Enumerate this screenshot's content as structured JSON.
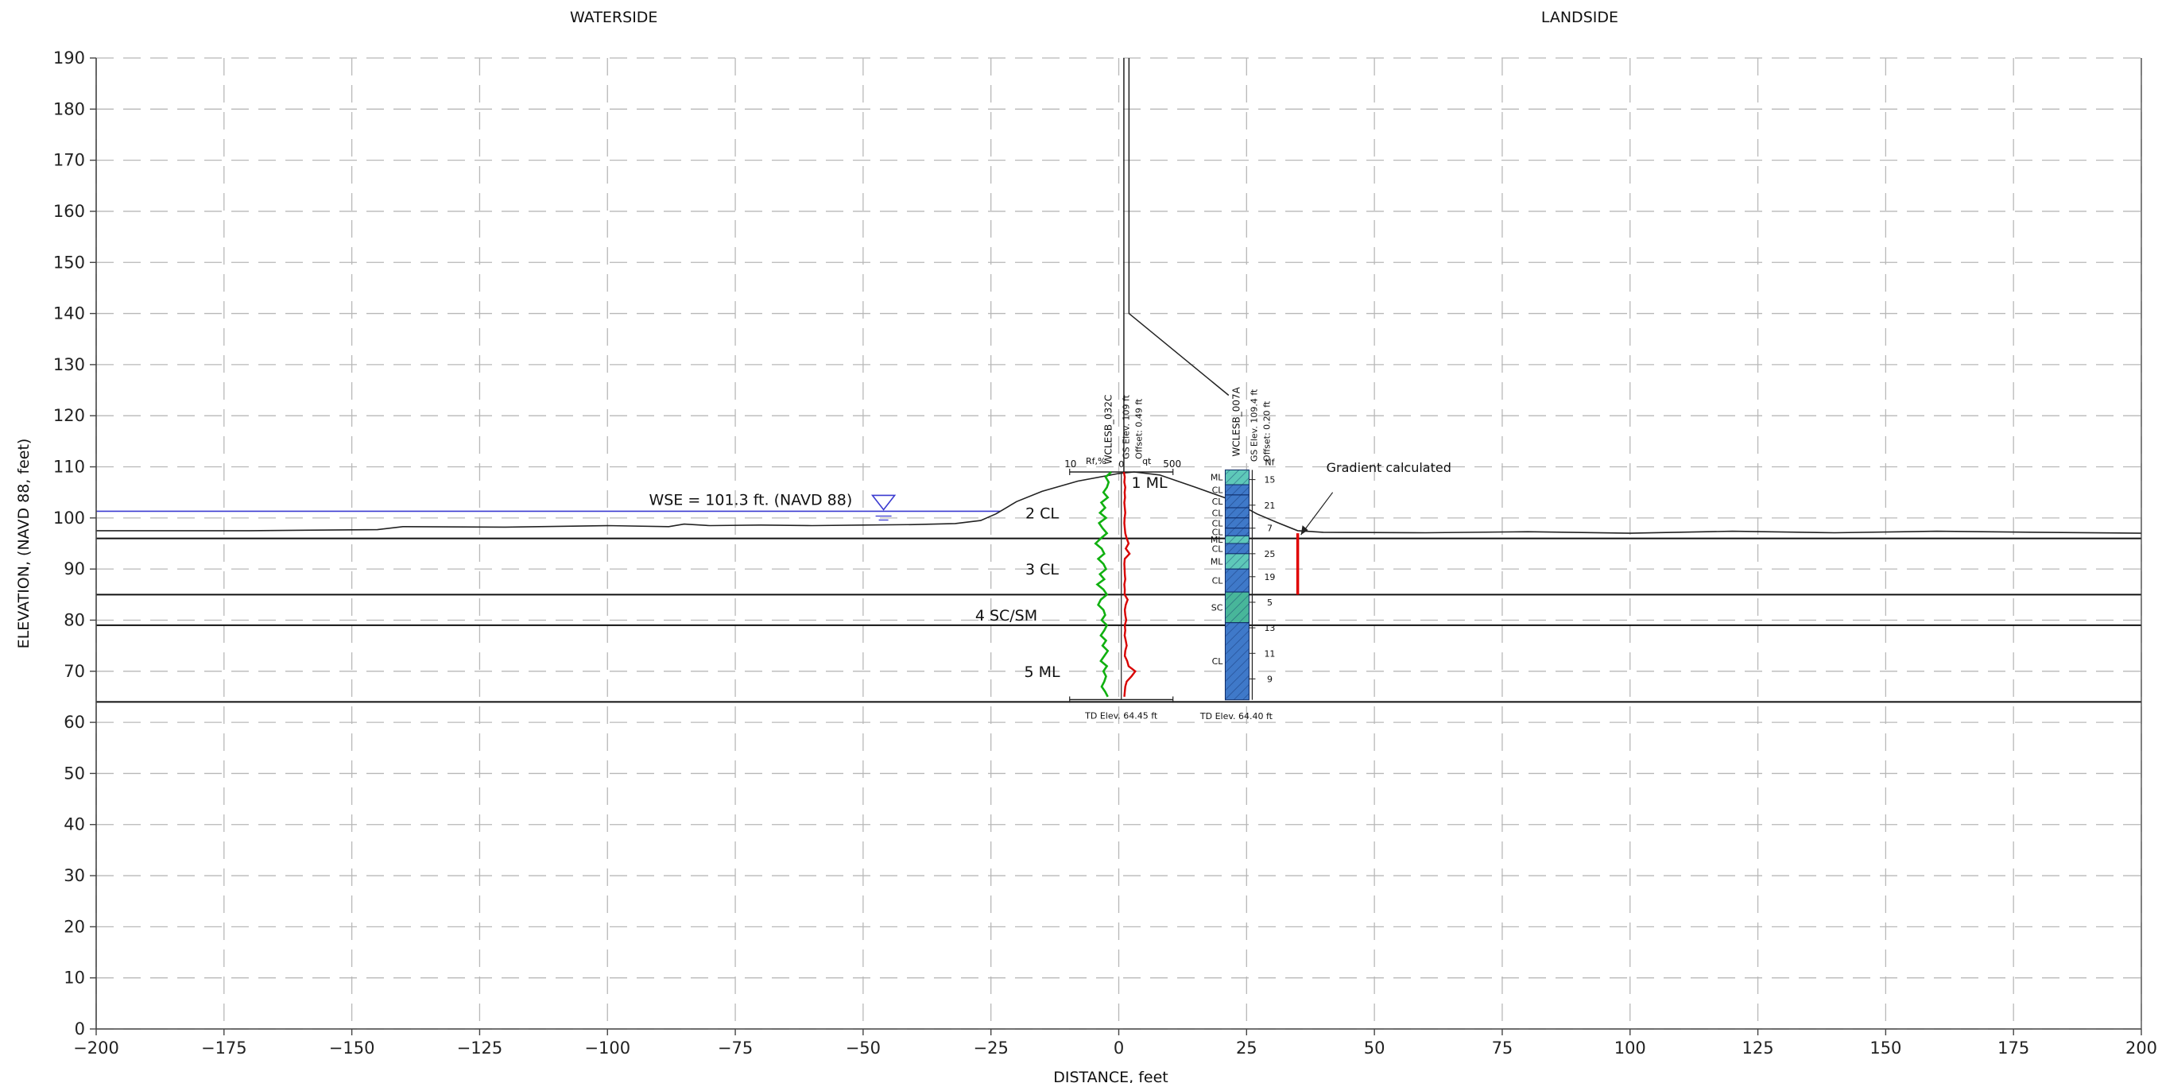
{
  "chart_data": {
    "type": "cross-section",
    "region_labels": {
      "left": "WATERSIDE",
      "right": "LANDSIDE"
    },
    "xlabel": "DISTANCE, feet",
    "ylabel": "ELEVATION, (NAVD 88, feet)",
    "xlim": [
      -200,
      200
    ],
    "ylim": [
      0,
      190
    ],
    "xticks": [
      -200,
      -175,
      -150,
      -125,
      -100,
      -75,
      -50,
      -25,
      0,
      25,
      50,
      75,
      100,
      125,
      150,
      175,
      200
    ],
    "yticks": [
      0,
      10,
      20,
      30,
      40,
      50,
      60,
      70,
      80,
      90,
      100,
      110,
      120,
      130,
      140,
      150,
      160,
      170,
      180,
      190
    ],
    "xtick_labels": [
      "−200",
      "−175",
      "−150",
      "−125",
      "−100",
      "−75",
      "−50",
      "−25",
      "0",
      "25",
      "50",
      "75",
      "100",
      "125",
      "150",
      "175",
      "200"
    ],
    "ytick_labels": [
      "0",
      "10",
      "20",
      "30",
      "40",
      "50",
      "60",
      "70",
      "80",
      "90",
      "100",
      "110",
      "120",
      "130",
      "140",
      "150",
      "160",
      "170",
      "180",
      "190"
    ],
    "grid": true,
    "water_surface": {
      "label": "WSE = 101.3 ft. (NAVD 88)",
      "elevation": 101.3,
      "symbol_x": -46,
      "color": "#3a3ad0"
    },
    "ground_surface": {
      "x": [
        -200,
        -170,
        -145,
        -140,
        -120,
        -100,
        -88,
        -85,
        -80,
        -70,
        -60,
        -50,
        -40,
        -32,
        -27,
        -24,
        -20,
        -15,
        -8,
        0,
        3,
        8,
        15,
        22,
        27,
        31,
        35,
        40,
        60,
        80,
        100,
        120,
        140,
        160,
        180,
        200
      ],
      "y": [
        97.5,
        97.5,
        97.7,
        98.3,
        98.2,
        98.5,
        98.3,
        98.8,
        98.5,
        98.6,
        98.5,
        98.6,
        98.7,
        98.9,
        99.5,
        100.8,
        103.2,
        105.2,
        107.2,
        108.7,
        109.0,
        108.4,
        106.0,
        103.5,
        100.8,
        99.1,
        97.5,
        97.2,
        97.1,
        97.3,
        97.0,
        97.4,
        97.1,
        97.4,
        97.2,
        97.0
      ]
    },
    "layer_boundaries": [
      96.0,
      85.0,
      79.0,
      64.0
    ],
    "layer_labels": [
      {
        "text": "1 ML",
        "x": 6,
        "y": 107.0
      },
      {
        "text": "2 CL",
        "x": -15,
        "y": 101.0
      },
      {
        "text": "3 CL",
        "x": -15,
        "y": 90.0
      },
      {
        "text": "4 SC/SM",
        "x": -22,
        "y": 81.0
      },
      {
        "text": "5 ML",
        "x": -15,
        "y": 70.0
      }
    ],
    "borings": [
      {
        "name": "WCLESB_032C",
        "gs_elev": "GS Elev. 109 ft",
        "offset": "Offset: 0.49 ft",
        "x": 0.5,
        "td_label": "TD Elev. 64.45 ft",
        "td_elev": 64.45,
        "scale_labels": {
          "left_val": "10",
          "left_name": "Rf,%",
          "mid": "0",
          "right_name": "qt",
          "right_val": "500"
        },
        "rf_trace": {
          "elev": [
            109,
            108,
            107,
            106,
            105,
            104,
            103,
            102,
            101,
            100,
            99,
            98,
            97,
            96,
            95,
            94,
            93,
            92,
            91,
            90,
            89,
            88,
            87,
            86,
            85,
            84,
            83,
            82,
            81,
            80,
            79,
            78,
            77,
            76,
            75,
            74,
            73,
            72,
            71,
            70,
            69,
            68,
            67,
            66,
            65
          ],
          "value": [
            1.2,
            2.5,
            1.8,
            2.2,
            3.0,
            2.0,
            3.5,
            2.6,
            3.8,
            2.4,
            4.0,
            3.2,
            2.2,
            3.6,
            4.8,
            3.4,
            2.8,
            4.2,
            3.0,
            2.4,
            3.8,
            2.8,
            4.4,
            3.0,
            2.2,
            3.6,
            4.2,
            3.0,
            2.6,
            3.4,
            2.2,
            2.8,
            3.6,
            2.4,
            3.2,
            2.0,
            2.8,
            3.6,
            2.2,
            3.0,
            2.4,
            2.8,
            3.4,
            2.6,
            2.0
          ]
        },
        "qt_trace": {
          "elev": [
            109,
            108,
            107,
            106,
            105,
            104,
            103,
            102,
            101,
            100,
            99,
            98,
            97,
            96,
            95,
            94,
            93,
            92,
            91,
            90,
            89,
            88,
            87,
            86,
            85,
            84,
            83,
            82,
            81,
            80,
            79,
            78,
            77,
            76,
            75,
            74,
            73,
            72,
            71,
            70,
            69,
            68,
            67,
            66,
            65
          ],
          "value": [
            10,
            20,
            15,
            25,
            18,
            22,
            15,
            20,
            25,
            18,
            15,
            20,
            25,
            40,
            60,
            30,
            70,
            20,
            15,
            18,
            20,
            25,
            15,
            20,
            18,
            50,
            30,
            20,
            25,
            35,
            20,
            25,
            18,
            30,
            40,
            25,
            20,
            45,
            60,
            130,
            90,
            40,
            25,
            20,
            15
          ]
        }
      },
      {
        "name": "WCLESB_007A",
        "gs_elev": "GS Elev. 109.4 ft",
        "offset": "Offset: 0.20 ft",
        "x": 23,
        "td_label": "TD Elev. 64.40 ft",
        "td_elev": 64.4,
        "n_header": "Nf",
        "samples": [
          {
            "elev": 107.5,
            "n": "15"
          },
          {
            "elev": 102.5,
            "n": "21"
          },
          {
            "elev": 98.0,
            "n": "7"
          },
          {
            "elev": 93.0,
            "n": "25"
          },
          {
            "elev": 88.5,
            "n": "19"
          },
          {
            "elev": 83.5,
            "n": "5"
          },
          {
            "elev": 78.5,
            "n": "13"
          },
          {
            "elev": 73.5,
            "n": "11"
          },
          {
            "elev": 68.5,
            "n": "9"
          }
        ],
        "soil_column": [
          {
            "top": 109.4,
            "bottom": 106.5,
            "code": "ML",
            "color": "#5ec8b9"
          },
          {
            "top": 106.5,
            "bottom": 104.5,
            "code": "CL",
            "color": "#3f79c9"
          },
          {
            "top": 104.5,
            "bottom": 102.0,
            "code": "CL",
            "color": "#3f79c9"
          },
          {
            "top": 102.0,
            "bottom": 100.0,
            "code": "CL",
            "color": "#3f79c9"
          },
          {
            "top": 100.0,
            "bottom": 98.0,
            "code": "CL",
            "color": "#3f79c9"
          },
          {
            "top": 98.0,
            "bottom": 96.5,
            "code": "CL",
            "color": "#3f79c9"
          },
          {
            "top": 96.5,
            "bottom": 95.0,
            "code": "ML",
            "color": "#5ec8b9"
          },
          {
            "top": 95.0,
            "bottom": 93.0,
            "code": "CL",
            "color": "#3f79c9"
          },
          {
            "top": 93.0,
            "bottom": 90.0,
            "code": "ML",
            "color": "#5ec8b9"
          },
          {
            "top": 90.0,
            "bottom": 85.5,
            "code": "CL",
            "color": "#3f79c9"
          },
          {
            "top": 85.5,
            "bottom": 79.5,
            "code": "SC",
            "color": "#48b69a"
          },
          {
            "top": 79.5,
            "bottom": 64.4,
            "code": "CL",
            "color": "#3f79c9"
          }
        ]
      }
    ],
    "gradient_marker": {
      "label": "Gradient calculated",
      "x": 35,
      "top": 97.0,
      "bottom": 85.0,
      "color": "#e00000"
    },
    "levee_centerline": {
      "top_x": 1.0,
      "bend_elev": 140,
      "bend_x": 2.0,
      "diag_end_x": 21.5,
      "diag_end_elev": 124
    },
    "colors": {
      "grid": "#b8b8b8",
      "axis": "#444444",
      "rf_trace": "#10b010",
      "qt_trace": "#d80000",
      "water": "#3a3ad0"
    }
  }
}
